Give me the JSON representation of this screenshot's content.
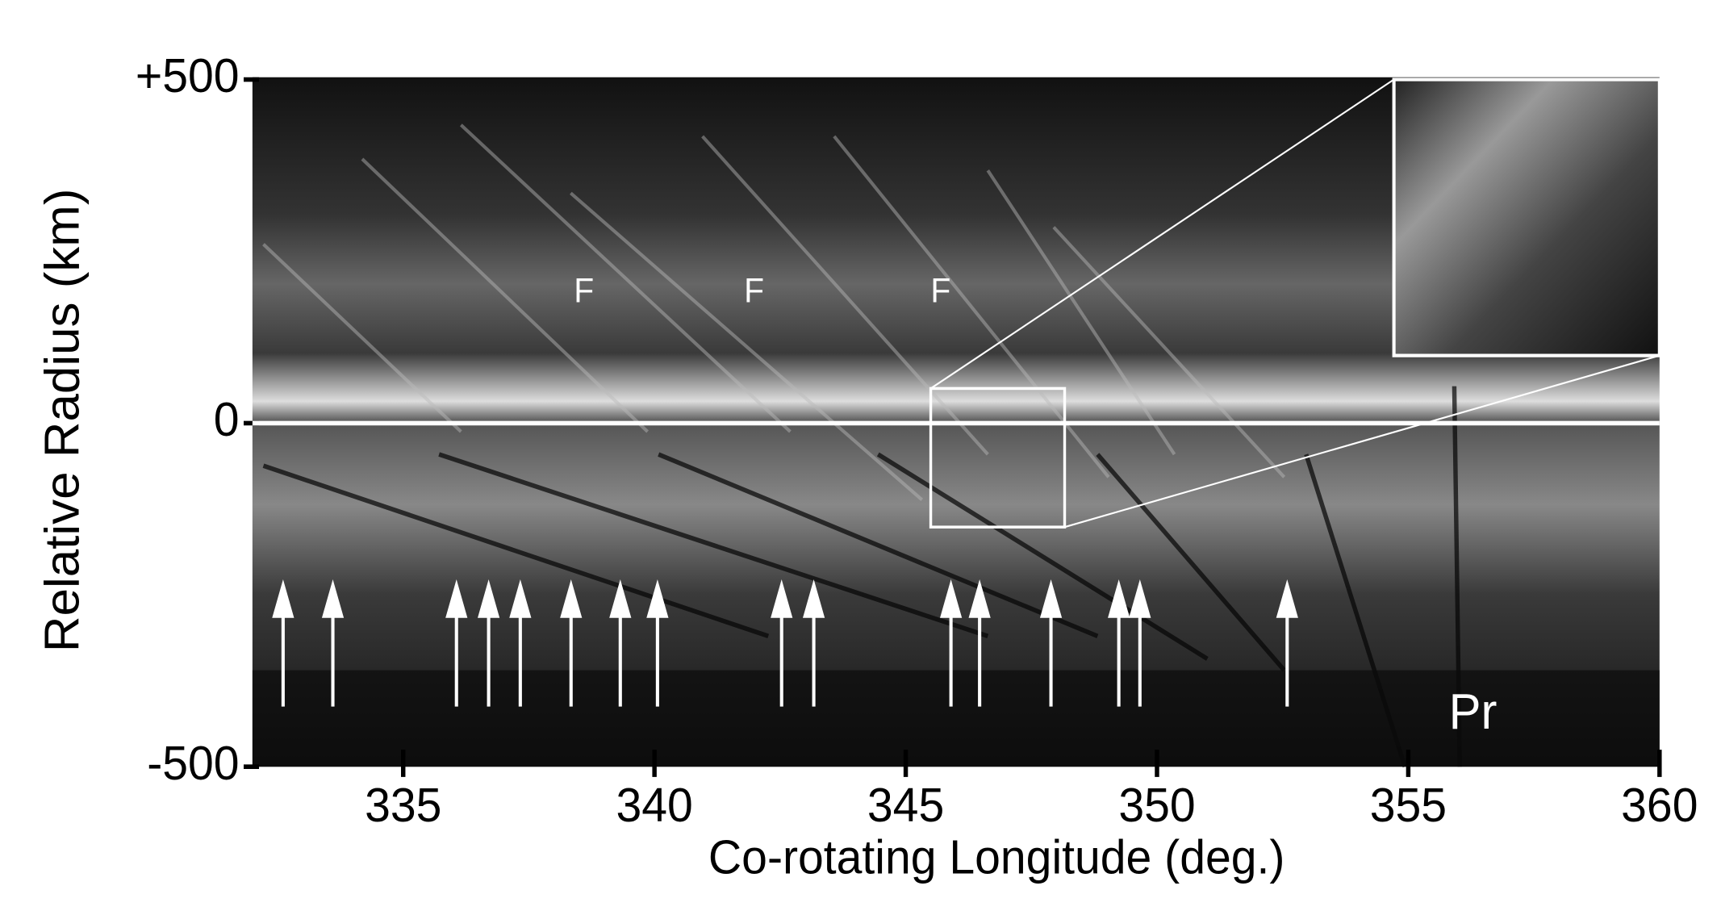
{
  "chart_data": {
    "type": "image",
    "xlabel": "Co-rotating Longitude (deg.)",
    "ylabel": "Relative Radius (km)",
    "xlim": [
      332,
      360
    ],
    "xticks": [
      335,
      340,
      345,
      350,
      355,
      360
    ],
    "ylim": [
      -500,
      500
    ],
    "yticks": [
      {
        "value": 500,
        "label": "+500"
      },
      0,
      -500
    ],
    "arrows": [
      332.61,
      333.6,
      336.06,
      336.7,
      337.33,
      338.34,
      339.32,
      340.06,
      342.53,
      343.17,
      345.9,
      346.47,
      347.89,
      349.24,
      349.66,
      352.59
    ],
    "annotations": [
      "F",
      "F",
      "F",
      "Pr"
    ]
  }
}
